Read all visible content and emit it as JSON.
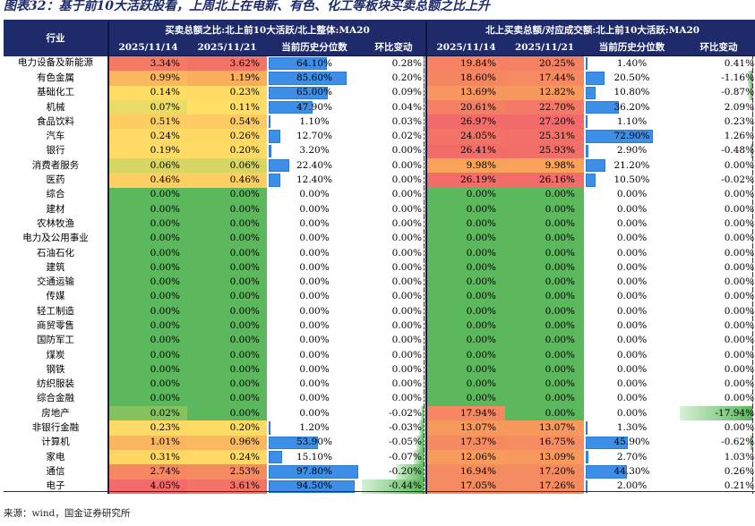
{
  "title": "图表32：基于前10大活跃股看，上周北上在电新、有色、化工等板块买卖总额之比上升",
  "header": {
    "industry": "行业",
    "group1": "买卖总额之比:北上前10大活跃/北上整体:MA20",
    "group2": "北上买卖总额/对应成交额:北上前10大活跃:MA20",
    "cols": [
      "2025/11/14",
      "2025/11/21",
      "当前历史分位数",
      "环比变动",
      "2025/11/14",
      "2025/11/21",
      "当前历史分位数",
      "环比变动"
    ]
  },
  "colors": {
    "header_bg": "#1f2a6b",
    "green": "#5cb85c",
    "yellow": "#ffe066",
    "orange": "#f8a45a",
    "red": "#f26a6a",
    "bar": "#3d8ee6"
  },
  "rows": [
    {
      "industry": "电力设备及新能源",
      "a1": "3.34%",
      "a2": "3.62%",
      "a3": "64.10%",
      "a4": "0.28%",
      "b1": "19.84%",
      "b2": "20.25%",
      "b3": "1.40%",
      "b4": "0.41%"
    },
    {
      "industry": "有色金属",
      "a1": "0.99%",
      "a2": "1.19%",
      "a3": "85.60%",
      "a4": "0.20%",
      "b1": "18.60%",
      "b2": "17.44%",
      "b3": "20.50%",
      "b4": "-1.16%"
    },
    {
      "industry": "基础化工",
      "a1": "0.14%",
      "a2": "0.23%",
      "a3": "65.00%",
      "a4": "0.09%",
      "b1": "13.69%",
      "b2": "12.82%",
      "b3": "10.80%",
      "b4": "-0.87%"
    },
    {
      "industry": "机械",
      "a1": "0.07%",
      "a2": "0.11%",
      "a3": "47.90%",
      "a4": "0.04%",
      "b1": "20.61%",
      "b2": "22.70%",
      "b3": "36.20%",
      "b4": "2.09%"
    },
    {
      "industry": "食品饮料",
      "a1": "0.51%",
      "a2": "0.54%",
      "a3": "1.10%",
      "a4": "0.03%",
      "b1": "26.97%",
      "b2": "27.20%",
      "b3": "1.10%",
      "b4": "0.23%"
    },
    {
      "industry": "汽车",
      "a1": "0.24%",
      "a2": "0.26%",
      "a3": "12.70%",
      "a4": "0.02%",
      "b1": "24.05%",
      "b2": "25.31%",
      "b3": "72.90%",
      "b4": "1.26%"
    },
    {
      "industry": "银行",
      "a1": "0.19%",
      "a2": "0.20%",
      "a3": "3.20%",
      "a4": "0.00%",
      "b1": "26.41%",
      "b2": "25.93%",
      "b3": "2.90%",
      "b4": "-0.48%"
    },
    {
      "industry": "消费者服务",
      "a1": "0.06%",
      "a2": "0.06%",
      "a3": "22.40%",
      "a4": "0.00%",
      "b1": "9.98%",
      "b2": "9.98%",
      "b3": "21.20%",
      "b4": "0.00%"
    },
    {
      "industry": "医药",
      "a1": "0.46%",
      "a2": "0.46%",
      "a3": "12.40%",
      "a4": "0.00%",
      "b1": "26.19%",
      "b2": "26.16%",
      "b3": "10.50%",
      "b4": "-0.02%"
    },
    {
      "industry": "综合",
      "a1": "0.00%",
      "a2": "0.00%",
      "a3": "0.00%",
      "a4": "0.00%",
      "b1": "0.00%",
      "b2": "0.00%",
      "b3": "0.00%",
      "b4": "0.00%"
    },
    {
      "industry": "建材",
      "a1": "0.00%",
      "a2": "0.00%",
      "a3": "0.00%",
      "a4": "0.00%",
      "b1": "0.00%",
      "b2": "0.00%",
      "b3": "0.00%",
      "b4": "0.00%"
    },
    {
      "industry": "农林牧渔",
      "a1": "0.00%",
      "a2": "0.00%",
      "a3": "0.00%",
      "a4": "0.00%",
      "b1": "0.00%",
      "b2": "0.00%",
      "b3": "0.00%",
      "b4": "0.00%"
    },
    {
      "industry": "电力及公用事业",
      "a1": "0.00%",
      "a2": "0.00%",
      "a3": "0.00%",
      "a4": "0.00%",
      "b1": "0.00%",
      "b2": "0.00%",
      "b3": "0.00%",
      "b4": "0.00%"
    },
    {
      "industry": "石油石化",
      "a1": "0.00%",
      "a2": "0.00%",
      "a3": "0.00%",
      "a4": "0.00%",
      "b1": "0.00%",
      "b2": "0.00%",
      "b3": "0.00%",
      "b4": "0.00%"
    },
    {
      "industry": "建筑",
      "a1": "0.00%",
      "a2": "0.00%",
      "a3": "0.00%",
      "a4": "0.00%",
      "b1": "0.00%",
      "b2": "0.00%",
      "b3": "0.00%",
      "b4": "0.00%"
    },
    {
      "industry": "交通运输",
      "a1": "0.00%",
      "a2": "0.00%",
      "a3": "0.00%",
      "a4": "0.00%",
      "b1": "0.00%",
      "b2": "0.00%",
      "b3": "0.00%",
      "b4": "0.00%"
    },
    {
      "industry": "传媒",
      "a1": "0.00%",
      "a2": "0.00%",
      "a3": "0.00%",
      "a4": "0.00%",
      "b1": "0.00%",
      "b2": "0.00%",
      "b3": "0.00%",
      "b4": "0.00%"
    },
    {
      "industry": "轻工制造",
      "a1": "0.00%",
      "a2": "0.00%",
      "a3": "0.00%",
      "a4": "0.00%",
      "b1": "0.00%",
      "b2": "0.00%",
      "b3": "0.00%",
      "b4": "0.00%"
    },
    {
      "industry": "商贸零售",
      "a1": "0.00%",
      "a2": "0.00%",
      "a3": "0.00%",
      "a4": "0.00%",
      "b1": "0.00%",
      "b2": "0.00%",
      "b3": "0.00%",
      "b4": "0.00%"
    },
    {
      "industry": "国防军工",
      "a1": "0.00%",
      "a2": "0.00%",
      "a3": "0.00%",
      "a4": "0.00%",
      "b1": "0.00%",
      "b2": "0.00%",
      "b3": "0.00%",
      "b4": "0.00%"
    },
    {
      "industry": "煤炭",
      "a1": "0.00%",
      "a2": "0.00%",
      "a3": "0.00%",
      "a4": "0.00%",
      "b1": "0.00%",
      "b2": "0.00%",
      "b3": "0.00%",
      "b4": "0.00%"
    },
    {
      "industry": "钢铁",
      "a1": "0.00%",
      "a2": "0.00%",
      "a3": "0.00%",
      "a4": "0.00%",
      "b1": "0.00%",
      "b2": "0.00%",
      "b3": "0.00%",
      "b4": "0.00%"
    },
    {
      "industry": "纺织服装",
      "a1": "0.00%",
      "a2": "0.00%",
      "a3": "0.00%",
      "a4": "0.00%",
      "b1": "0.00%",
      "b2": "0.00%",
      "b3": "0.00%",
      "b4": "0.00%"
    },
    {
      "industry": "综合金融",
      "a1": "0.00%",
      "a2": "0.00%",
      "a3": "0.00%",
      "a4": "0.00%",
      "b1": "0.00%",
      "b2": "0.00%",
      "b3": "0.00%",
      "b4": "0.00%"
    },
    {
      "industry": "房地产",
      "a1": "0.02%",
      "a2": "0.00%",
      "a3": "0.00%",
      "a4": "-0.02%",
      "b1": "17.94%",
      "b2": "0.00%",
      "b3": "0.00%",
      "b4": "-17.94%"
    },
    {
      "industry": "非银行金融",
      "a1": "0.23%",
      "a2": "0.20%",
      "a3": "1.20%",
      "a4": "-0.03%",
      "b1": "13.07%",
      "b2": "13.07%",
      "b3": "1.30%",
      "b4": "0.00%"
    },
    {
      "industry": "计算机",
      "a1": "1.01%",
      "a2": "0.96%",
      "a3": "53.90%",
      "a4": "-0.05%",
      "b1": "17.37%",
      "b2": "16.75%",
      "b3": "45.90%",
      "b4": "-0.62%"
    },
    {
      "industry": "家电",
      "a1": "0.31%",
      "a2": "0.24%",
      "a3": "15.10%",
      "a4": "-0.07%",
      "b1": "12.06%",
      "b2": "13.09%",
      "b3": "2.70%",
      "b4": "1.03%"
    },
    {
      "industry": "通信",
      "a1": "2.74%",
      "a2": "2.53%",
      "a3": "97.80%",
      "a4": "-0.20%",
      "b1": "16.94%",
      "b2": "17.20%",
      "b3": "44.30%",
      "b4": "0.26%"
    },
    {
      "industry": "电子",
      "a1": "4.05%",
      "a2": "3.61%",
      "a3": "94.50%",
      "a4": "-0.44%",
      "b1": "17.05%",
      "b2": "17.26%",
      "b3": "2.00%",
      "b4": "0.21%"
    }
  ],
  "source": "来源：wind，国金证券研究所"
}
